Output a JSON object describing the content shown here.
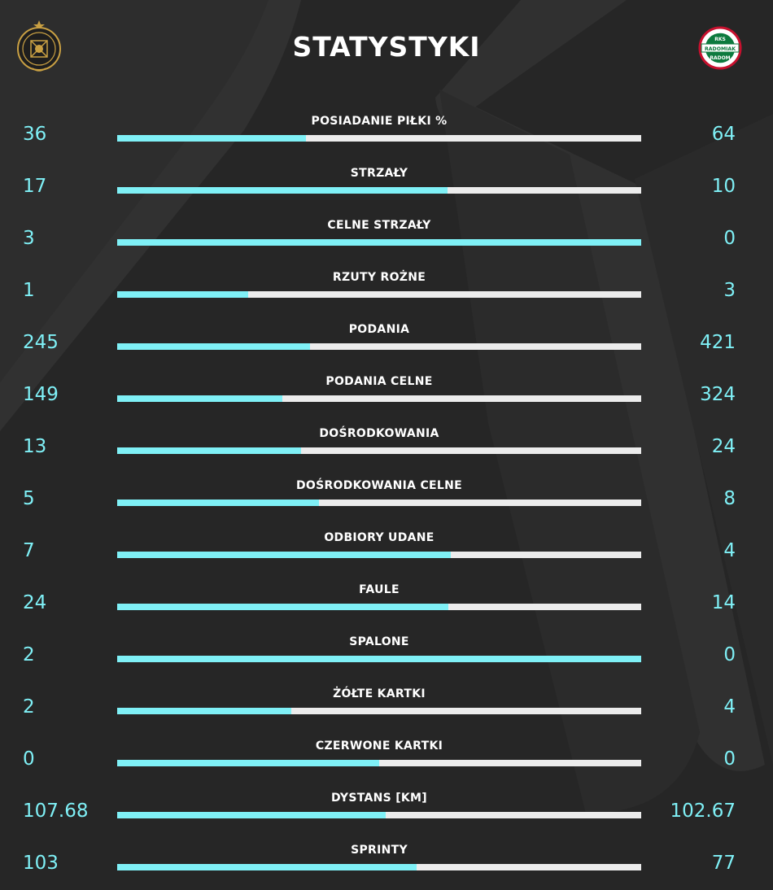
{
  "header": {
    "title": "STATYSTYKI",
    "home_logo": {
      "icon": "home-team-crest-icon",
      "color": "#c9a043"
    },
    "away_logo": {
      "icon": "away-team-crest-icon",
      "text_top": "RKS",
      "text_mid": "RADOMIAK",
      "text_bottom": "RADOM"
    }
  },
  "colors": {
    "background": "#262626",
    "accent": "#7ff0f6",
    "bar_track": "#ececec",
    "text": "#ffffff"
  },
  "stats": [
    {
      "label": "POSIADANIE PIŁKI %",
      "home": "36",
      "away": "64",
      "home_fraction": 0.36
    },
    {
      "label": "STRZAŁY",
      "home": "17",
      "away": "10",
      "home_fraction": 0.63
    },
    {
      "label": "CELNE STRZAŁY",
      "home": "3",
      "away": "0",
      "home_fraction": 1.0
    },
    {
      "label": "RZUTY ROŻNE",
      "home": "1",
      "away": "3",
      "home_fraction": 0.25
    },
    {
      "label": "PODANIA",
      "home": "245",
      "away": "421",
      "home_fraction": 0.368
    },
    {
      "label": "PODANIA CELNE",
      "home": "149",
      "away": "324",
      "home_fraction": 0.315
    },
    {
      "label": "DOŚRODKOWANIA",
      "home": "13",
      "away": "24",
      "home_fraction": 0.351
    },
    {
      "label": "DOŚRODKOWANIA CELNE",
      "home": "5",
      "away": "8",
      "home_fraction": 0.385
    },
    {
      "label": "ODBIORY UDANE",
      "home": "7",
      "away": "4",
      "home_fraction": 0.636
    },
    {
      "label": "FAULE",
      "home": "24",
      "away": "14",
      "home_fraction": 0.632
    },
    {
      "label": "SPALONE",
      "home": "2",
      "away": "0",
      "home_fraction": 1.0
    },
    {
      "label": "ŻÓŁTE KARTKI",
      "home": "2",
      "away": "4",
      "home_fraction": 0.333
    },
    {
      "label": "CZERWONE KARTKI",
      "home": "0",
      "away": "0",
      "home_fraction": 0.5
    },
    {
      "label": "DYSTANS [KM]",
      "home": "107.68",
      "away": "102.67",
      "home_fraction": 0.512
    },
    {
      "label": "SPRINTY",
      "home": "103",
      "away": "77",
      "home_fraction": 0.572
    }
  ]
}
